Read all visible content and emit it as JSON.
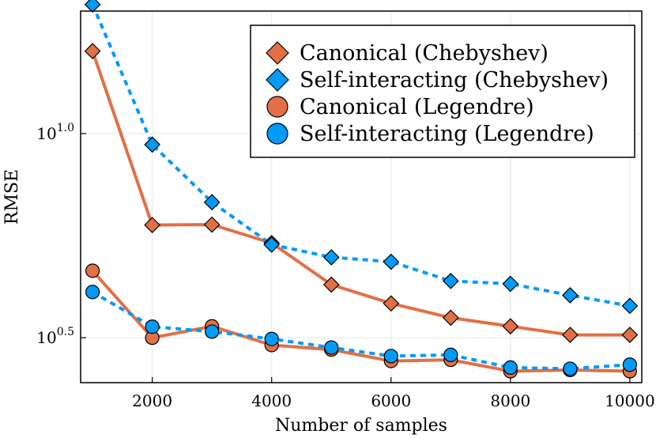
{
  "chart_data": {
    "type": "line",
    "xlabel": "Number of samples",
    "ylabel": "RMSE",
    "yscale": "log10",
    "xlim": [
      800,
      10200
    ],
    "ylim_log10": [
      0.39,
      1.3
    ],
    "x_ticks": [
      2000,
      4000,
      6000,
      8000,
      10000
    ],
    "x_tick_labels": [
      "2000",
      "4000",
      "6000",
      "8000",
      "10000"
    ],
    "y_ticks_log10": [
      0.5,
      1.0
    ],
    "y_tick_labels": [
      {
        "base": "10",
        "exp": "0.5"
      },
      {
        "base": "10",
        "exp": "1.0"
      }
    ],
    "grid": true,
    "legend_position": "top-right",
    "x": [
      1000,
      2000,
      3000,
      4000,
      5000,
      6000,
      7000,
      8000,
      9000,
      10000
    ],
    "series": [
      {
        "name": "Canonical (Chebyshev)",
        "color": "#e26f46",
        "line": "solid",
        "marker": "diamond",
        "log10_values": [
          1.202,
          0.776,
          0.777,
          0.732,
          0.63,
          0.584,
          0.549,
          0.528,
          0.507,
          0.507
        ]
      },
      {
        "name": "Self-interacting (Chebyshev)",
        "color": "#009af9",
        "line": "dashed",
        "marker": "diamond",
        "log10_values": [
          1.316,
          0.973,
          0.832,
          0.728,
          0.697,
          0.686,
          0.639,
          0.632,
          0.604,
          0.578
        ]
      },
      {
        "name": "Canonical (Legendre)",
        "color": "#e26f46",
        "line": "solid",
        "marker": "circle",
        "log10_values": [
          0.664,
          0.5,
          0.528,
          0.482,
          0.471,
          0.443,
          0.446,
          0.418,
          0.421,
          0.418
        ]
      },
      {
        "name": "Self-interacting (Legendre)",
        "color": "#009af9",
        "line": "dashed",
        "marker": "circle",
        "log10_values": [
          0.612,
          0.527,
          0.515,
          0.497,
          0.476,
          0.455,
          0.458,
          0.427,
          0.424,
          0.434
        ]
      }
    ]
  }
}
